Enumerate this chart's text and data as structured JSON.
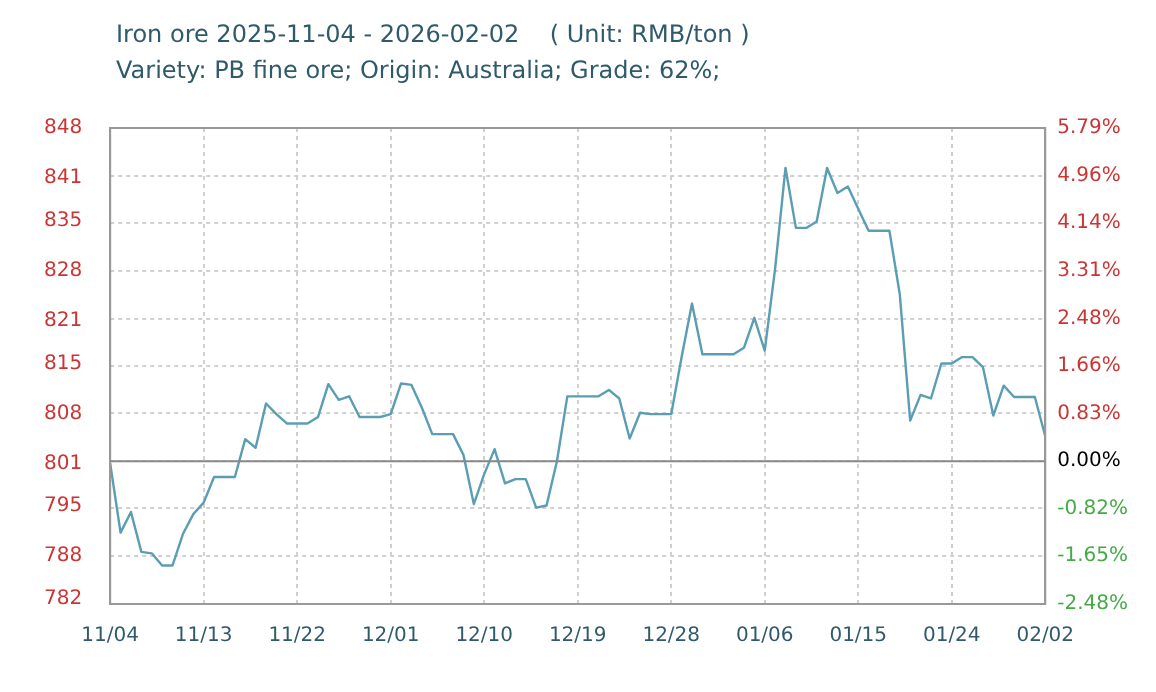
{
  "chart_data": {
    "type": "line",
    "title": "Iron ore 2025-11-04 - 2026-02-02    ( Unit: RMB/ton )",
    "subtitle": "Variety: PB  fine ore; Origin: Australia; Grade: 62%;",
    "x": [
      "2025-11-04",
      "2025-11-05",
      "2025-11-06",
      "2025-11-07",
      "2025-11-08",
      "2025-11-09",
      "2025-11-10",
      "2025-11-11",
      "2025-11-12",
      "2025-11-13",
      "2025-11-14",
      "2025-11-15",
      "2025-11-16",
      "2025-11-17",
      "2025-11-18",
      "2025-11-19",
      "2025-11-20",
      "2025-11-21",
      "2025-11-22",
      "2025-11-23",
      "2025-11-24",
      "2025-11-25",
      "2025-11-26",
      "2025-11-27",
      "2025-11-28",
      "2025-11-29",
      "2025-11-30",
      "2025-12-01",
      "2025-12-02",
      "2025-12-03",
      "2025-12-04",
      "2025-12-05",
      "2025-12-06",
      "2025-12-07",
      "2025-12-08",
      "2025-12-09",
      "2025-12-10",
      "2025-12-11",
      "2025-12-12",
      "2025-12-13",
      "2025-12-14",
      "2025-12-15",
      "2025-12-16",
      "2025-12-17",
      "2025-12-18",
      "2025-12-19",
      "2025-12-20",
      "2025-12-21",
      "2025-12-22",
      "2025-12-23",
      "2025-12-24",
      "2025-12-25",
      "2025-12-26",
      "2025-12-27",
      "2025-12-28",
      "2025-12-29",
      "2025-12-30",
      "2025-12-31",
      "2026-01-01",
      "2026-01-02",
      "2026-01-03",
      "2026-01-04",
      "2026-01-05",
      "2026-01-06",
      "2026-01-07",
      "2026-01-08",
      "2026-01-09",
      "2026-01-10",
      "2026-01-11",
      "2026-01-12",
      "2026-01-13",
      "2026-01-14",
      "2026-01-15",
      "2026-01-16",
      "2026-01-17",
      "2026-01-18",
      "2026-01-19",
      "2026-01-20",
      "2026-01-21",
      "2026-01-22",
      "2026-01-23",
      "2026-01-24",
      "2026-01-25",
      "2026-01-26",
      "2026-01-27",
      "2026-01-28",
      "2026-01-29",
      "2026-01-30",
      "2026-01-31",
      "2026-02-01",
      "2026-02-02"
    ],
    "series": [
      {
        "color": "#5b9db3",
        "values": [
          801,
          791.3,
          794.2,
          788.6,
          788.4,
          786.7,
          786.7,
          791.1,
          793.9,
          795.5,
          799.1,
          799.1,
          799.1,
          804.4,
          803.2,
          809.4,
          807.9,
          806.6,
          806.6,
          806.6,
          807.5,
          812.1,
          809.9,
          810.4,
          807.5,
          807.5,
          807.5,
          807.9,
          812.2,
          812.0,
          808.8,
          805.1,
          805.1,
          805.1,
          802.2,
          795.3,
          799.5,
          803.0,
          798.2,
          798.8,
          798.8,
          794.8,
          795.1,
          801.3,
          810.4,
          810.4,
          810.4,
          810.4,
          811.3,
          810.1,
          804.5,
          808.1,
          807.9,
          807.9,
          807.9,
          815.9,
          823.4,
          816.3,
          816.3,
          816.3,
          816.3,
          817.2,
          821.4,
          816.8,
          828.3,
          842.4,
          834.0,
          834.0,
          834.9,
          842.4,
          838.9,
          839.8,
          836.7,
          833.6,
          833.6,
          833.6,
          824.7,
          807.0,
          810.6,
          810.1,
          815.0,
          815.0,
          815.9,
          815.9,
          814.5,
          807.7,
          811.9,
          810.3,
          810.3,
          810.3,
          804.8
        ]
      }
    ],
    "xlim": [
      "2025-11-04",
      "2026-02-02"
    ],
    "xticks": [
      {
        "value": "2025-11-04",
        "label": "11/04"
      },
      {
        "value": "2025-11-13",
        "label": "11/13"
      },
      {
        "value": "2025-11-22",
        "label": "11/22"
      },
      {
        "value": "2025-12-01",
        "label": "12/01"
      },
      {
        "value": "2025-12-10",
        "label": "12/10"
      },
      {
        "value": "2025-12-19",
        "label": "12/19"
      },
      {
        "value": "2025-12-28",
        "label": "12/28"
      },
      {
        "value": "2026-01-06",
        "label": "01/06"
      },
      {
        "value": "2026-01-15",
        "label": "01/15"
      },
      {
        "value": "2026-01-24",
        "label": "01/24"
      },
      {
        "value": "2026-02-02",
        "label": "02/02"
      }
    ],
    "ylim": [
      781.3,
      848
    ],
    "yticks": [
      782,
      788,
      795,
      801,
      808,
      815,
      821,
      828,
      835,
      841,
      848
    ],
    "y2lim": [
      -2.48,
      5.79
    ],
    "y2ticks": [
      {
        "value": -2.48,
        "label": "-2.48%"
      },
      {
        "value": -1.65,
        "label": "-1.65%"
      },
      {
        "value": -0.82,
        "label": "-0.82%"
      },
      {
        "value": 0,
        "label": "0.00%"
      },
      {
        "value": 0.83,
        "label": "0.83%"
      },
      {
        "value": 1.66,
        "label": "1.66%"
      },
      {
        "value": 2.48,
        "label": "2.48%"
      },
      {
        "value": 3.31,
        "label": "3.31%"
      },
      {
        "value": 4.14,
        "label": "4.14%"
      },
      {
        "value": 4.96,
        "label": "4.96%"
      },
      {
        "value": 5.79,
        "label": "5.79%"
      }
    ],
    "ref_lines": [
      {
        "axis": "y2",
        "value": 0,
        "color": "#888888"
      }
    ],
    "grid": true,
    "legend": false,
    "marker": "none",
    "line_style": "solid"
  }
}
